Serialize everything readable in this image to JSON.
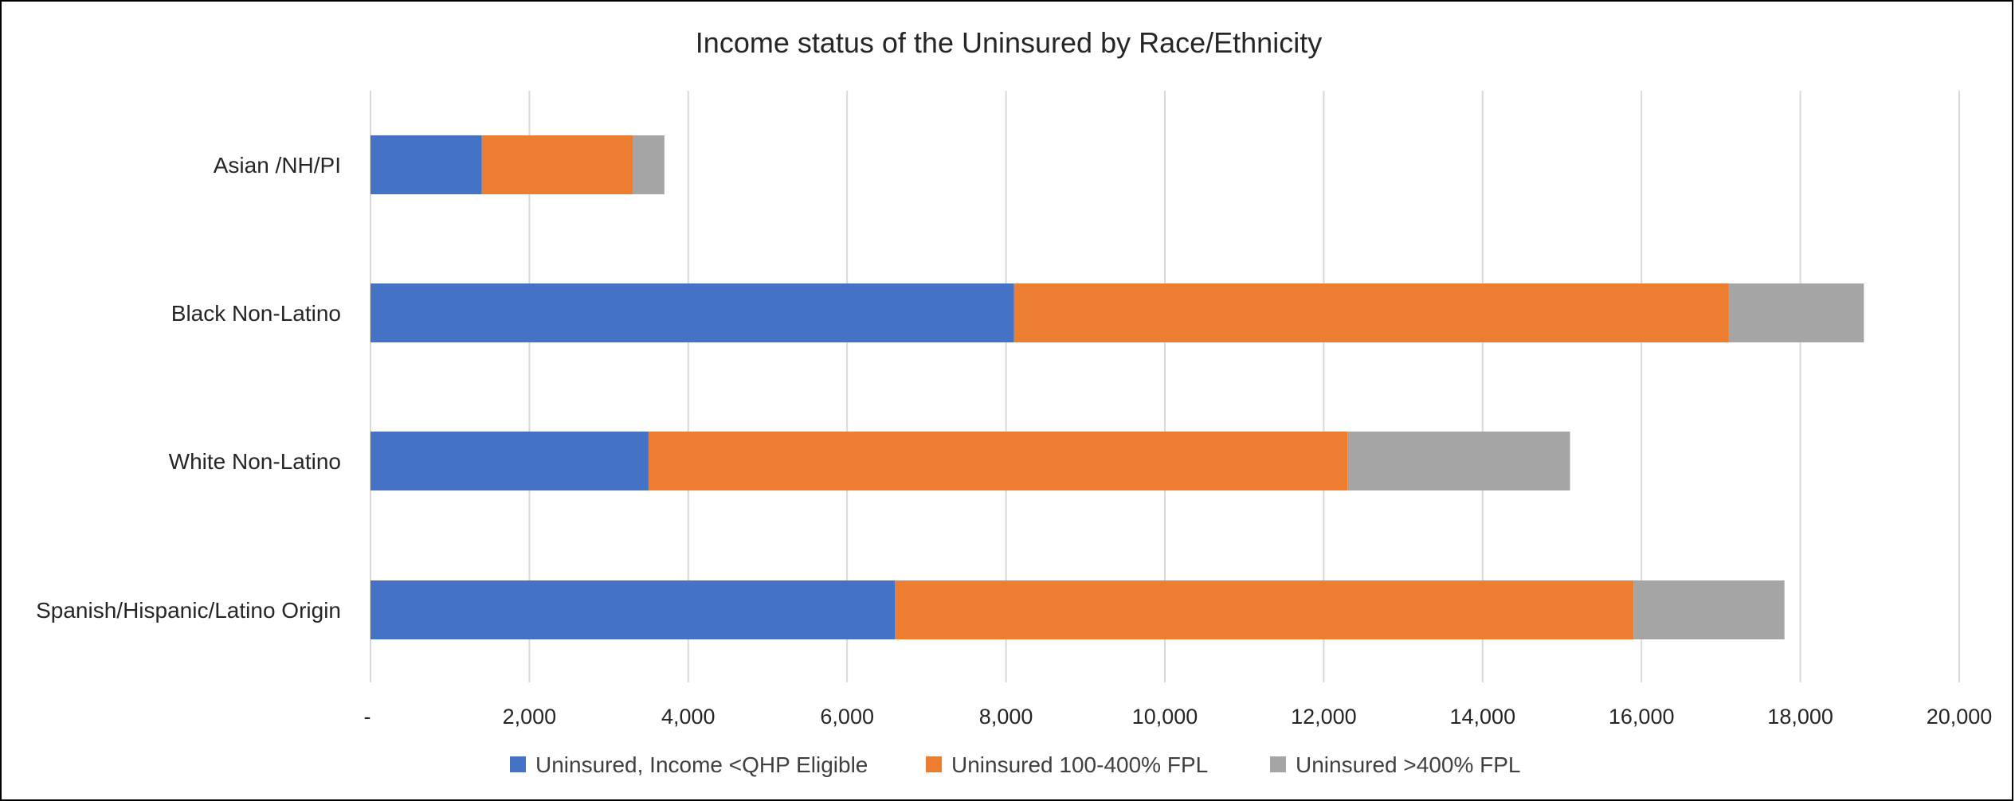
{
  "chart_data": {
    "type": "bar",
    "orientation": "horizontal",
    "stacked": true,
    "title": "Income status of the Uninsured by Race/Ethnicity",
    "categories": [
      "Asian /NH/PI",
      "Black Non-Latino",
      "White Non-Latino",
      "Spanish/Hispanic/Latino Origin"
    ],
    "series": [
      {
        "name": "Uninsured, Income <QHP Eligible",
        "color": "#4472C4",
        "values": [
          1400,
          8100,
          3500,
          6600
        ]
      },
      {
        "name": "Uninsured 100-400% FPL",
        "color": "#ED7D31",
        "values": [
          1900,
          9000,
          8800,
          9300
        ]
      },
      {
        "name": "Uninsured >400% FPL",
        "color": "#A5A5A5",
        "values": [
          400,
          1700,
          2800,
          1900
        ]
      }
    ],
    "xlim": [
      0,
      20000
    ],
    "xticks": [
      0,
      2000,
      4000,
      6000,
      8000,
      10000,
      12000,
      14000,
      16000,
      18000,
      20000
    ],
    "xtick_labels": [
      "-",
      "2,000",
      "4,000",
      "6,000",
      "8,000",
      "10,000",
      "12,000",
      "14,000",
      "16,000",
      "18,000",
      "20,000"
    ],
    "grid": "vertical",
    "legend_position": "bottom"
  }
}
